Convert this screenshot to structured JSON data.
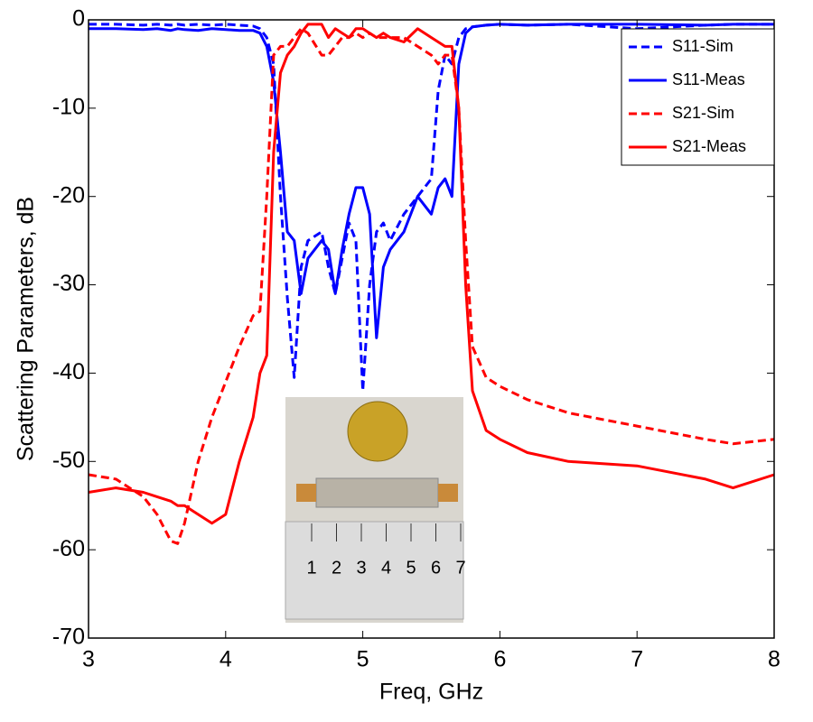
{
  "chart_data": {
    "type": "line",
    "x_label": "Freq, GHz",
    "y_label": "Scattering Parameters, dB",
    "xlim": [
      3,
      8
    ],
    "ylim": [
      -70,
      0
    ],
    "xticks": [
      3,
      4,
      5,
      6,
      7,
      8
    ],
    "yticks": [
      0,
      -10,
      -20,
      -30,
      -40,
      -50,
      -60,
      -70
    ],
    "legend": "upper right",
    "x": [
      3,
      3.2,
      3.4,
      3.5,
      3.6,
      3.65,
      3.7,
      3.8,
      3.9,
      4.0,
      4.1,
      4.2,
      4.25,
      4.3,
      4.35,
      4.4,
      4.45,
      4.5,
      4.55,
      4.6,
      4.7,
      4.75,
      4.8,
      4.85,
      4.9,
      4.95,
      5.0,
      5.05,
      5.1,
      5.15,
      5.2,
      5.3,
      5.4,
      5.5,
      5.55,
      5.6,
      5.65,
      5.7,
      5.75,
      5.8,
      5.9,
      6.0,
      6.2,
      6.5,
      7.0,
      7.5,
      7.7,
      8.0
    ],
    "series": [
      {
        "name": "S11-Sim",
        "color": "#0000ff",
        "line_style": "dashed",
        "values": [
          -0.5,
          -0.5,
          -0.6,
          -0.5,
          -0.6,
          -0.5,
          -0.6,
          -0.5,
          -0.6,
          -0.5,
          -0.6,
          -0.7,
          -1,
          -2,
          -5,
          -20,
          -31.5,
          -40.5,
          -28,
          -25,
          -24,
          -28,
          -31,
          -27,
          -23,
          -25,
          -42,
          -30,
          -24,
          -23,
          -25,
          -22,
          -20,
          -18,
          -8,
          -4,
          -5,
          -2,
          -1,
          -0.8,
          -0.6,
          -0.5,
          -0.6,
          -0.5,
          -1,
          -0.6,
          -0.5,
          -0.5
        ]
      },
      {
        "name": "S11-Meas",
        "color": "#0000ff",
        "line_style": "solid",
        "values": [
          -1,
          -1,
          -1.1,
          -1,
          -1.2,
          -1,
          -1.1,
          -1.2,
          -1,
          -1.1,
          -1.2,
          -1.2,
          -1.5,
          -3,
          -7,
          -15,
          -24,
          -25,
          -31,
          -27,
          -25,
          -26,
          -31,
          -26,
          -22,
          -19,
          -19,
          -22,
          -36,
          -28,
          -26,
          -24,
          -20,
          -22,
          -19,
          -18,
          -20,
          -5,
          -1.5,
          -0.8,
          -0.6,
          -0.5,
          -0.6,
          -0.5,
          -0.5,
          -0.6,
          -0.5,
          -0.5
        ]
      },
      {
        "name": "S21-Sim",
        "color": "#ff0000",
        "line_style": "dashed",
        "values": [
          -51.5,
          -52,
          -54,
          -56,
          -59,
          -59.3,
          -57,
          -50,
          -45,
          -41,
          -37,
          -33.5,
          -33,
          -20,
          -4,
          -3,
          -3,
          -2,
          -1,
          -1.5,
          -4,
          -4,
          -3,
          -2,
          -2,
          -1.5,
          -2,
          -1.5,
          -2,
          -2,
          -2,
          -2,
          -3,
          -4,
          -5,
          -4,
          -4,
          -10,
          -25,
          -37,
          -40.5,
          -41.5,
          -43,
          -44.5,
          -46,
          -47.5,
          -48,
          -47.5
        ]
      },
      {
        "name": "S21-Meas",
        "color": "#ff0000",
        "line_style": "solid",
        "values": [
          -53.5,
          -53,
          -53.5,
          -54,
          -54.5,
          -55,
          -55,
          -56,
          -57,
          -56,
          -50,
          -45,
          -40,
          -38,
          -15,
          -6,
          -4,
          -3,
          -1.5,
          -0.5,
          -0.5,
          -2,
          -1,
          -1.5,
          -2,
          -1,
          -1,
          -1.5,
          -2,
          -1.5,
          -2,
          -2.5,
          -1,
          -2,
          -2.5,
          -3,
          -3,
          -10,
          -30,
          -42,
          -46.5,
          -47.5,
          -49,
          -50,
          -50.5,
          -52,
          -53,
          -51.5
        ]
      }
    ]
  },
  "inset": {
    "ruler_labels": [
      "1",
      "2",
      "3",
      "4",
      "5",
      "6",
      "7"
    ]
  }
}
